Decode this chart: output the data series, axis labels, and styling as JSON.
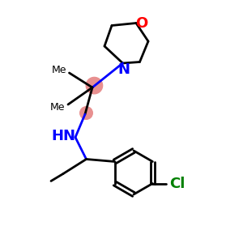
{
  "background_color": "#ffffff",
  "bond_color": "#000000",
  "N_color": "#0000ff",
  "O_color": "#ff0000",
  "Cl_color": "#008000",
  "highlight_color": "#e89090",
  "figsize": [
    3.0,
    3.0
  ],
  "dpi": 100,
  "lw": 2.0,
  "xlim": [
    0,
    10
  ],
  "ylim": [
    0,
    10
  ]
}
